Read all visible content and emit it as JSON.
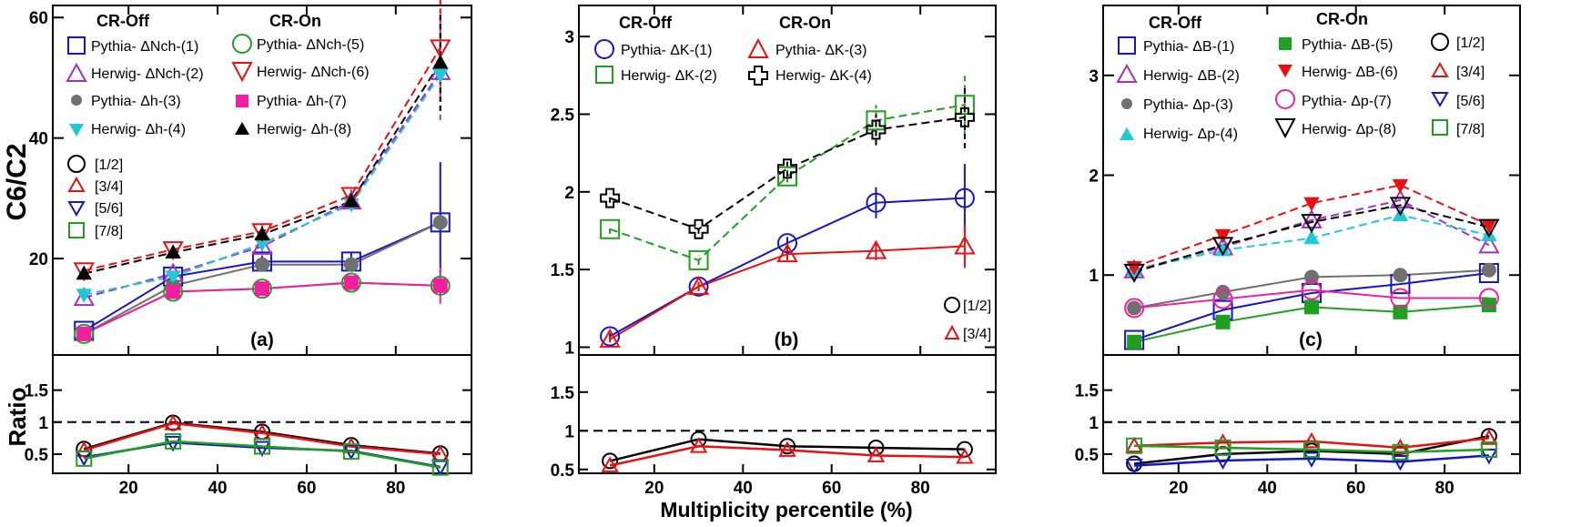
{
  "figure": {
    "y_axis_label": "C6/C2",
    "ratio_axis_label": "Ratio",
    "x_axis_label": "Multiplicity percentile (%)"
  },
  "colors": {
    "blue": "#1515c8",
    "purple": "#a030c8",
    "grey": "#707070",
    "cyan": "#20c8d8",
    "green": "#20a020",
    "red": "#e81010",
    "magenta": "#f020a0",
    "black": "#000000"
  },
  "chart_data": [
    {
      "type": "line",
      "panel_label": "(a)",
      "title": "",
      "xlabel": "Multiplicity percentile (%)",
      "ylabel": "C6/C2",
      "xlim": [
        3,
        97
      ],
      "ylim": [
        4,
        62
      ],
      "yticks": [
        20,
        40,
        60
      ],
      "xticks": [
        20,
        40,
        60,
        80
      ],
      "x": [
        10,
        30,
        50,
        70,
        90
      ],
      "legend_headers": [
        "CR-Off",
        "CR-On"
      ],
      "series": [
        {
          "name": "Pythia- ΔNch-(1)",
          "color": "blue",
          "marker": "square-open",
          "dash": false,
          "values": [
            8,
            17,
            19.5,
            19.5,
            26
          ],
          "errors": [
            0.5,
            0.8,
            1,
            1.5,
            10
          ]
        },
        {
          "name": "Herwig- ΔNch-(2)",
          "color": "purple",
          "marker": "triangle-open",
          "dash": true,
          "values": [
            13.5,
            17.5,
            22,
            29.5,
            51
          ],
          "errors": [
            0.5,
            0.5,
            1,
            1.5,
            8
          ]
        },
        {
          "name": "Pythia- Δh-(3)",
          "color": "grey",
          "marker": "circle",
          "dash": false,
          "values": [
            7.5,
            15.5,
            19,
            19,
            26
          ],
          "errors": [
            0,
            0,
            0,
            0,
            0
          ]
        },
        {
          "name": "Herwig- Δh-(4)",
          "color": "cyan",
          "marker": "triangledown",
          "dash": true,
          "values": [
            14,
            17,
            22.5,
            29,
            50.5
          ],
          "errors": [
            0,
            0,
            0,
            0,
            0
          ]
        },
        {
          "name": "Pythia- ΔNch-(5)",
          "color": "green",
          "marker": "circle-open",
          "dash": false,
          "values": [
            7.5,
            14.5,
            15,
            16,
            15.5
          ],
          "errors": [
            0.5,
            0.5,
            0.5,
            0.5,
            1.5
          ]
        },
        {
          "name": "Herwig- ΔNch-(6)",
          "color": "red",
          "marker": "triangledown-open",
          "dash": true,
          "values": [
            18,
            21.5,
            24.5,
            30.5,
            55
          ],
          "errors": [
            0.5,
            0.5,
            1,
            1.5,
            8
          ]
        },
        {
          "name": "Pythia- Δh-(7)",
          "color": "magenta",
          "marker": "square",
          "dash": false,
          "values": [
            7.5,
            14.5,
            15,
            16,
            15.5
          ],
          "errors": [
            0,
            0,
            0,
            0,
            3
          ]
        },
        {
          "name": "Herwig- Δh-(8)",
          "color": "black",
          "marker": "triangle",
          "dash": true,
          "values": [
            17.5,
            21,
            24,
            29.5,
            52.5
          ],
          "errors": [
            0.5,
            0.5,
            1,
            1.5,
            8
          ]
        }
      ],
      "ratio": {
        "ylim": [
          0.2,
          2.05
        ],
        "yticks": [
          0.5,
          1,
          1.5
        ],
        "reference_line": 1,
        "series": [
          {
            "name": "[1/2]",
            "color": "black",
            "marker": "circle-open",
            "values": [
              0.58,
              0.99,
              0.85,
              0.64,
              0.51
            ]
          },
          {
            "name": "[3/4]",
            "color": "red",
            "marker": "triangle-open",
            "values": [
              0.56,
              0.98,
              0.83,
              0.62,
              0.5
            ]
          },
          {
            "name": "[5/6]",
            "color": "blue",
            "marker": "triangledown-open",
            "values": [
              0.45,
              0.68,
              0.6,
              0.55,
              0.3
            ]
          },
          {
            "name": "[7/8]",
            "color": "green",
            "marker": "square-open",
            "values": [
              0.43,
              0.7,
              0.62,
              0.54,
              0.29
            ]
          }
        ]
      }
    },
    {
      "type": "line",
      "panel_label": "(b)",
      "title": "",
      "xlabel": "Multiplicity percentile (%)",
      "ylabel": "",
      "xlim": [
        3,
        97
      ],
      "ylim": [
        0.95,
        3.2
      ],
      "yticks": [
        1,
        1.5,
        2,
        2.5,
        3
      ],
      "xticks": [
        20,
        40,
        60,
        80
      ],
      "x": [
        10,
        30,
        50,
        70,
        90
      ],
      "legend_headers": [
        "CR-Off",
        "CR-On"
      ],
      "series": [
        {
          "name": "Pythia- ΔK-(1)",
          "color": "blue",
          "marker": "circle-open",
          "dash": false,
          "values": [
            1.07,
            1.39,
            1.67,
            1.93,
            1.96
          ],
          "errors": [
            0.02,
            0.03,
            0.04,
            0.1,
            0.22
          ]
        },
        {
          "name": "Herwig- ΔK-(2)",
          "color": "green",
          "marker": "square-open",
          "dash": true,
          "values": [
            1.76,
            1.56,
            2.1,
            2.46,
            2.56
          ],
          "errors": [
            0.03,
            0.03,
            0.04,
            0.1,
            0.2
          ]
        },
        {
          "name": "Pythia- ΔK-(3)",
          "color": "red",
          "marker": "triangle-open",
          "dash": false,
          "values": [
            1.05,
            1.39,
            1.6,
            1.62,
            1.65
          ],
          "errors": [
            0.02,
            0.03,
            0.04,
            0.06,
            0.14
          ]
        },
        {
          "name": "Herwig- ΔK-(4)",
          "color": "black",
          "marker": "cross-open",
          "dash": true,
          "values": [
            1.96,
            1.76,
            2.15,
            2.4,
            2.48
          ],
          "errors": [
            0.03,
            0.03,
            0.05,
            0.1,
            0.2
          ]
        }
      ],
      "ratio": {
        "ylim": [
          0.45,
          1.98
        ],
        "yticks": [
          0.5,
          1,
          1.5
        ],
        "reference_line": 1,
        "legend": [
          "[1/2]",
          "[3/4]"
        ],
        "series": [
          {
            "name": "[1/2]",
            "color": "black",
            "marker": "circle-open",
            "values": [
              0.61,
              0.89,
              0.8,
              0.78,
              0.76
            ]
          },
          {
            "name": "[3/4]",
            "color": "red",
            "marker": "triangle-open",
            "values": [
              0.55,
              0.8,
              0.75,
              0.68,
              0.66
            ]
          }
        ]
      }
    },
    {
      "type": "line",
      "panel_label": "(c)",
      "title": "",
      "xlabel": "Multiplicity percentile (%)",
      "ylabel": "",
      "xlim": [
        3,
        97
      ],
      "ylim": [
        0.2,
        3.7
      ],
      "yticks": [
        1,
        2,
        3
      ],
      "xticks": [
        20,
        40,
        60,
        80
      ],
      "x": [
        10,
        30,
        50,
        70,
        90
      ],
      "legend_headers": [
        "CR-Off",
        "CR-On"
      ],
      "series": [
        {
          "name": "Pythia- ΔB-(1)",
          "color": "blue",
          "marker": "square-open",
          "dash": false,
          "values": [
            0.35,
            0.65,
            0.82,
            0.91,
            1.02
          ],
          "errors": [
            0,
            0,
            0,
            0,
            0
          ]
        },
        {
          "name": "Herwig- ΔB-(2)",
          "color": "purple",
          "marker": "triangle-open",
          "dash": true,
          "values": [
            1.05,
            1.28,
            1.55,
            1.75,
            1.3
          ],
          "errors": [
            0,
            0,
            0,
            0,
            0
          ]
        },
        {
          "name": "Pythia- Δp-(3)",
          "color": "grey",
          "marker": "circle",
          "dash": false,
          "values": [
            0.67,
            0.83,
            0.98,
            1.0,
            1.05
          ],
          "errors": [
            0,
            0,
            0,
            0,
            0
          ]
        },
        {
          "name": "Herwig- Δp-(4)",
          "color": "cyan",
          "marker": "triangle",
          "dash": true,
          "values": [
            1.05,
            1.25,
            1.37,
            1.6,
            1.4
          ],
          "errors": [
            0,
            0,
            0,
            0,
            0
          ]
        },
        {
          "name": "Pythia- ΔB-(5)",
          "color": "green",
          "marker": "square",
          "dash": false,
          "values": [
            0.33,
            0.53,
            0.68,
            0.63,
            0.7
          ],
          "errors": [
            0,
            0,
            0,
            0,
            0
          ]
        },
        {
          "name": "Herwig- ΔB-(6)",
          "color": "red",
          "marker": "triangledown",
          "dash": true,
          "values": [
            1.08,
            1.4,
            1.72,
            1.9,
            1.5
          ],
          "errors": [
            0,
            0,
            0,
            0,
            0
          ]
        },
        {
          "name": "Pythia- Δp-(7)",
          "color": "magenta",
          "marker": "circle-open",
          "dash": false,
          "values": [
            0.67,
            0.76,
            0.85,
            0.77,
            0.77
          ],
          "errors": [
            0,
            0,
            0,
            0,
            0
          ]
        },
        {
          "name": "Herwig- Δp-(8)",
          "color": "black",
          "marker": "triangledown-open",
          "dash": true,
          "values": [
            1.03,
            1.3,
            1.53,
            1.7,
            1.48
          ],
          "errors": [
            0,
            0,
            0,
            0,
            0
          ]
        }
      ],
      "ratio": {
        "ylim": [
          0.2,
          2.05
        ],
        "yticks": [
          0.5,
          1,
          1.5
        ],
        "reference_line": 1,
        "series": [
          {
            "name": "[1/2]",
            "color": "black",
            "marker": "circle-open",
            "values": [
              0.35,
              0.5,
              0.55,
              0.5,
              0.78
            ]
          },
          {
            "name": "[3/4]",
            "color": "red",
            "marker": "triangle-open",
            "values": [
              0.63,
              0.68,
              0.7,
              0.6,
              0.75
            ]
          },
          {
            "name": "[5/6]",
            "color": "blue",
            "marker": "triangledown-open",
            "values": [
              0.32,
              0.4,
              0.43,
              0.38,
              0.48
            ]
          },
          {
            "name": "[7/8]",
            "color": "green",
            "marker": "square-open",
            "values": [
              0.63,
              0.6,
              0.57,
              0.53,
              0.57
            ]
          }
        ]
      }
    }
  ]
}
